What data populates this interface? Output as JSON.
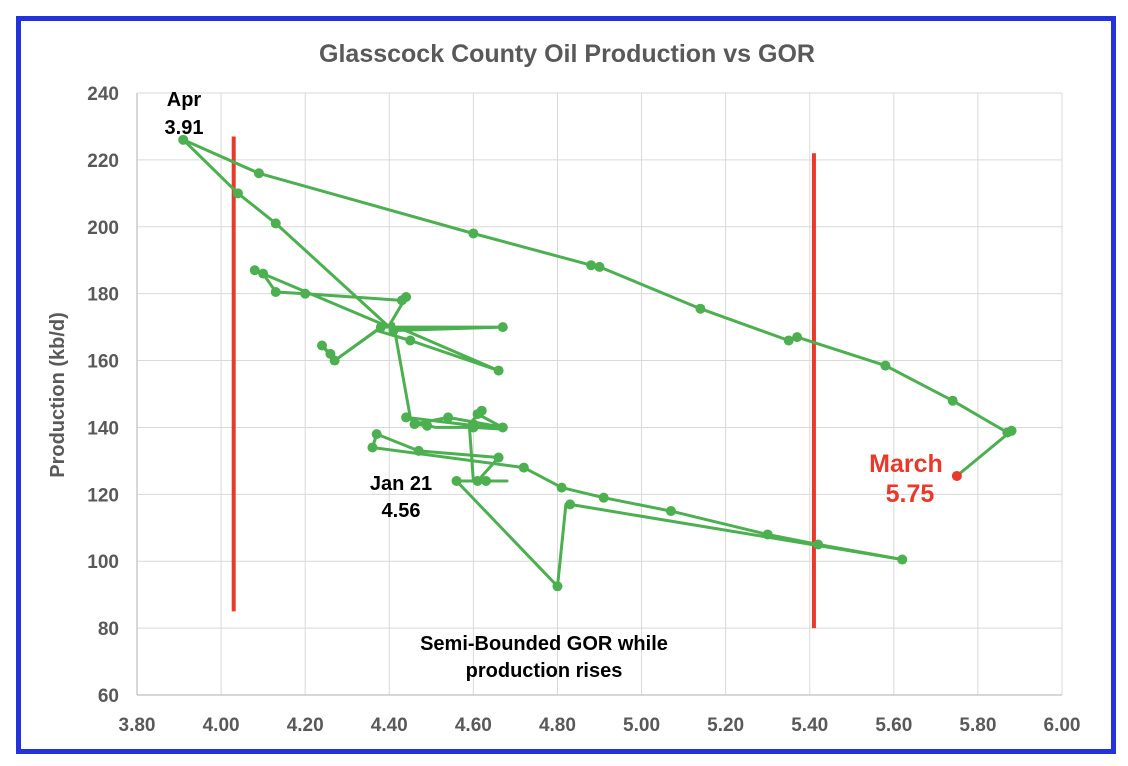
{
  "colors": {
    "frame": "#2233dd",
    "series": "#4caf50",
    "highlight": "#e8392b",
    "grid": "#d9d9d9",
    "text": "#595959"
  },
  "chart_data": {
    "type": "line",
    "title": "Glasscock County Oil Production vs GOR",
    "xlabel": "",
    "ylabel": "Production (kb/d)",
    "xlim": [
      3.8,
      6.0
    ],
    "ylim": [
      60,
      240
    ],
    "xticks": [
      "3.80",
      "4.00",
      "4.20",
      "4.40",
      "4.60",
      "4.80",
      "5.00",
      "5.20",
      "5.40",
      "5.60",
      "5.80",
      "6.00"
    ],
    "yticks": [
      "60",
      "80",
      "100",
      "120",
      "140",
      "160",
      "180",
      "200",
      "220",
      "240"
    ],
    "grid": true,
    "series": [
      {
        "x": [
          4.56,
          4.63,
          4.61,
          4.66,
          4.47,
          4.37,
          4.36,
          4.72,
          4.81,
          4.91,
          5.07,
          5.3,
          5.42,
          5.62,
          4.83,
          4.82,
          4.8,
          4.56
        ],
        "y": [
          124,
          124,
          124,
          131,
          133,
          138,
          134,
          128,
          122,
          119,
          115,
          108,
          105,
          100.5,
          117,
          117,
          92.5,
          124
        ],
        "highlight_last": false
      }
    ],
    "path": {
      "x": [
        4.56,
        4.63,
        4.61,
        4.66,
        4.47,
        4.37,
        4.36,
        4.72,
        4.81,
        4.91,
        5.07,
        5.3,
        5.42,
        5.62,
        4.83,
        4.82,
        4.8,
        4.56,
        4.68,
        4.6,
        4.59,
        4.62,
        4.61,
        4.67,
        4.54,
        4.46,
        4.49,
        4.44,
        4.67,
        4.6,
        4.51,
        4.46,
        4.45,
        4.41,
        4.38,
        4.27,
        4.26,
        4.24,
        4.27,
        4.37,
        4.45,
        4.66,
        4.42,
        4.39,
        4.67,
        4.41,
        4.4,
        4.44,
        4.43,
        4.2,
        4.13,
        4.1,
        4.08,
        4.4,
        4.13,
        4.04,
        3.91,
        4.09,
        4.6,
        4.88,
        4.9,
        5.14,
        5.35,
        5.37,
        5.58,
        5.74,
        5.87,
        5.88,
        5.75
      ],
      "y": [
        124,
        124,
        124,
        131,
        133,
        138,
        134,
        128,
        122,
        119,
        115,
        108,
        105,
        100.5,
        117,
        117,
        92.5,
        124,
        124,
        124,
        141,
        145,
        144,
        140,
        143,
        141,
        140.5,
        143,
        139.5,
        140,
        140,
        141.5,
        143,
        171,
        170,
        160,
        162,
        164.5,
        160,
        169,
        166,
        157,
        170,
        170,
        170,
        169,
        170.5,
        179,
        178,
        180,
        180.5,
        186,
        187,
        170,
        201,
        210,
        226,
        216,
        198,
        188.5,
        188,
        175.5,
        166,
        167,
        158.5,
        148,
        138.5,
        139,
        125.5
      ]
    },
    "points": {
      "x": [
        4.56,
        4.63,
        4.61,
        4.66,
        4.47,
        4.37,
        4.36,
        4.72,
        4.81,
        4.91,
        5.07,
        5.3,
        5.42,
        5.62,
        4.83,
        4.8,
        4.6,
        4.62,
        4.61,
        4.67,
        4.54,
        4.46,
        4.49,
        4.44,
        4.6,
        4.41,
        4.38,
        4.27,
        4.26,
        4.24,
        4.45,
        4.66,
        4.67,
        4.44,
        4.43,
        4.2,
        4.13,
        4.1,
        4.08,
        4.13,
        4.04,
        3.91,
        4.09,
        4.6,
        4.88,
        4.9,
        5.14,
        5.35,
        5.37,
        5.58,
        5.74,
        5.87,
        5.88,
        5.75
      ],
      "y": [
        124,
        124,
        124,
        131,
        133,
        138,
        134,
        128,
        122,
        119,
        115,
        108,
        105,
        100.5,
        117,
        92.5,
        141,
        145,
        144,
        140,
        143,
        141,
        140.5,
        143,
        140,
        169,
        170,
        160,
        162,
        164.5,
        166,
        157,
        170,
        179,
        178,
        180,
        180.5,
        186,
        187,
        201,
        210,
        226,
        216,
        198,
        188.5,
        188,
        175.5,
        166,
        167,
        158.5,
        148,
        138.5,
        139,
        125.5
      ]
    },
    "reference_lines": [
      {
        "x": 4.03,
        "y_from": 85,
        "y_to": 227
      },
      {
        "x": 5.41,
        "y_from": 80,
        "y_to": 222
      }
    ],
    "annotations": [
      {
        "id": "apr",
        "lines": [
          "Apr",
          "3.91"
        ]
      },
      {
        "id": "jan21",
        "lines": [
          "Jan 21",
          "4.56"
        ]
      },
      {
        "id": "march",
        "lines": [
          "March",
          "5.75"
        ]
      },
      {
        "id": "note",
        "lines": [
          "Semi-Bounded GOR while",
          "production rises"
        ]
      }
    ]
  }
}
